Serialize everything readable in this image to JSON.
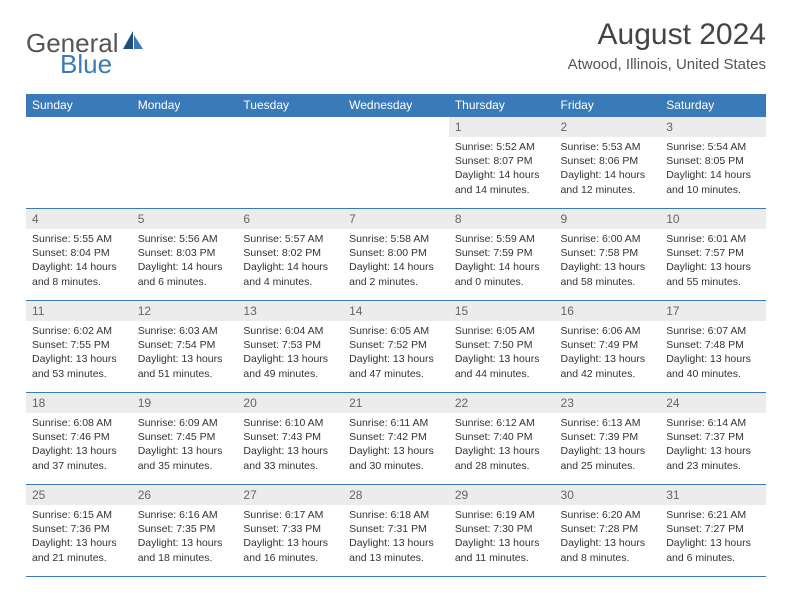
{
  "brand": {
    "text1": "General",
    "text2": "Blue"
  },
  "title": "August 2024",
  "location": "Atwood, Illinois, United States",
  "colors": {
    "header_bg": "#3b7ab8",
    "header_fg": "#ffffff",
    "daynum_bg": "#ececec",
    "border": "#3b7ab8"
  },
  "dayNames": [
    "Sunday",
    "Monday",
    "Tuesday",
    "Wednesday",
    "Thursday",
    "Friday",
    "Saturday"
  ],
  "weeks": [
    [
      null,
      null,
      null,
      null,
      {
        "d": "1",
        "sr": "5:52 AM",
        "ss": "8:07 PM",
        "dl": "14 hours and 14 minutes."
      },
      {
        "d": "2",
        "sr": "5:53 AM",
        "ss": "8:06 PM",
        "dl": "14 hours and 12 minutes."
      },
      {
        "d": "3",
        "sr": "5:54 AM",
        "ss": "8:05 PM",
        "dl": "14 hours and 10 minutes."
      }
    ],
    [
      {
        "d": "4",
        "sr": "5:55 AM",
        "ss": "8:04 PM",
        "dl": "14 hours and 8 minutes."
      },
      {
        "d": "5",
        "sr": "5:56 AM",
        "ss": "8:03 PM",
        "dl": "14 hours and 6 minutes."
      },
      {
        "d": "6",
        "sr": "5:57 AM",
        "ss": "8:02 PM",
        "dl": "14 hours and 4 minutes."
      },
      {
        "d": "7",
        "sr": "5:58 AM",
        "ss": "8:00 PM",
        "dl": "14 hours and 2 minutes."
      },
      {
        "d": "8",
        "sr": "5:59 AM",
        "ss": "7:59 PM",
        "dl": "14 hours and 0 minutes."
      },
      {
        "d": "9",
        "sr": "6:00 AM",
        "ss": "7:58 PM",
        "dl": "13 hours and 58 minutes."
      },
      {
        "d": "10",
        "sr": "6:01 AM",
        "ss": "7:57 PM",
        "dl": "13 hours and 55 minutes."
      }
    ],
    [
      {
        "d": "11",
        "sr": "6:02 AM",
        "ss": "7:55 PM",
        "dl": "13 hours and 53 minutes."
      },
      {
        "d": "12",
        "sr": "6:03 AM",
        "ss": "7:54 PM",
        "dl": "13 hours and 51 minutes."
      },
      {
        "d": "13",
        "sr": "6:04 AM",
        "ss": "7:53 PM",
        "dl": "13 hours and 49 minutes."
      },
      {
        "d": "14",
        "sr": "6:05 AM",
        "ss": "7:52 PM",
        "dl": "13 hours and 47 minutes."
      },
      {
        "d": "15",
        "sr": "6:05 AM",
        "ss": "7:50 PM",
        "dl": "13 hours and 44 minutes."
      },
      {
        "d": "16",
        "sr": "6:06 AM",
        "ss": "7:49 PM",
        "dl": "13 hours and 42 minutes."
      },
      {
        "d": "17",
        "sr": "6:07 AM",
        "ss": "7:48 PM",
        "dl": "13 hours and 40 minutes."
      }
    ],
    [
      {
        "d": "18",
        "sr": "6:08 AM",
        "ss": "7:46 PM",
        "dl": "13 hours and 37 minutes."
      },
      {
        "d": "19",
        "sr": "6:09 AM",
        "ss": "7:45 PM",
        "dl": "13 hours and 35 minutes."
      },
      {
        "d": "20",
        "sr": "6:10 AM",
        "ss": "7:43 PM",
        "dl": "13 hours and 33 minutes."
      },
      {
        "d": "21",
        "sr": "6:11 AM",
        "ss": "7:42 PM",
        "dl": "13 hours and 30 minutes."
      },
      {
        "d": "22",
        "sr": "6:12 AM",
        "ss": "7:40 PM",
        "dl": "13 hours and 28 minutes."
      },
      {
        "d": "23",
        "sr": "6:13 AM",
        "ss": "7:39 PM",
        "dl": "13 hours and 25 minutes."
      },
      {
        "d": "24",
        "sr": "6:14 AM",
        "ss": "7:37 PM",
        "dl": "13 hours and 23 minutes."
      }
    ],
    [
      {
        "d": "25",
        "sr": "6:15 AM",
        "ss": "7:36 PM",
        "dl": "13 hours and 21 minutes."
      },
      {
        "d": "26",
        "sr": "6:16 AM",
        "ss": "7:35 PM",
        "dl": "13 hours and 18 minutes."
      },
      {
        "d": "27",
        "sr": "6:17 AM",
        "ss": "7:33 PM",
        "dl": "13 hours and 16 minutes."
      },
      {
        "d": "28",
        "sr": "6:18 AM",
        "ss": "7:31 PM",
        "dl": "13 hours and 13 minutes."
      },
      {
        "d": "29",
        "sr": "6:19 AM",
        "ss": "7:30 PM",
        "dl": "13 hours and 11 minutes."
      },
      {
        "d": "30",
        "sr": "6:20 AM",
        "ss": "7:28 PM",
        "dl": "13 hours and 8 minutes."
      },
      {
        "d": "31",
        "sr": "6:21 AM",
        "ss": "7:27 PM",
        "dl": "13 hours and 6 minutes."
      }
    ]
  ],
  "labels": {
    "sunrise": "Sunrise: ",
    "sunset": "Sunset: ",
    "daylight": "Daylight: "
  }
}
